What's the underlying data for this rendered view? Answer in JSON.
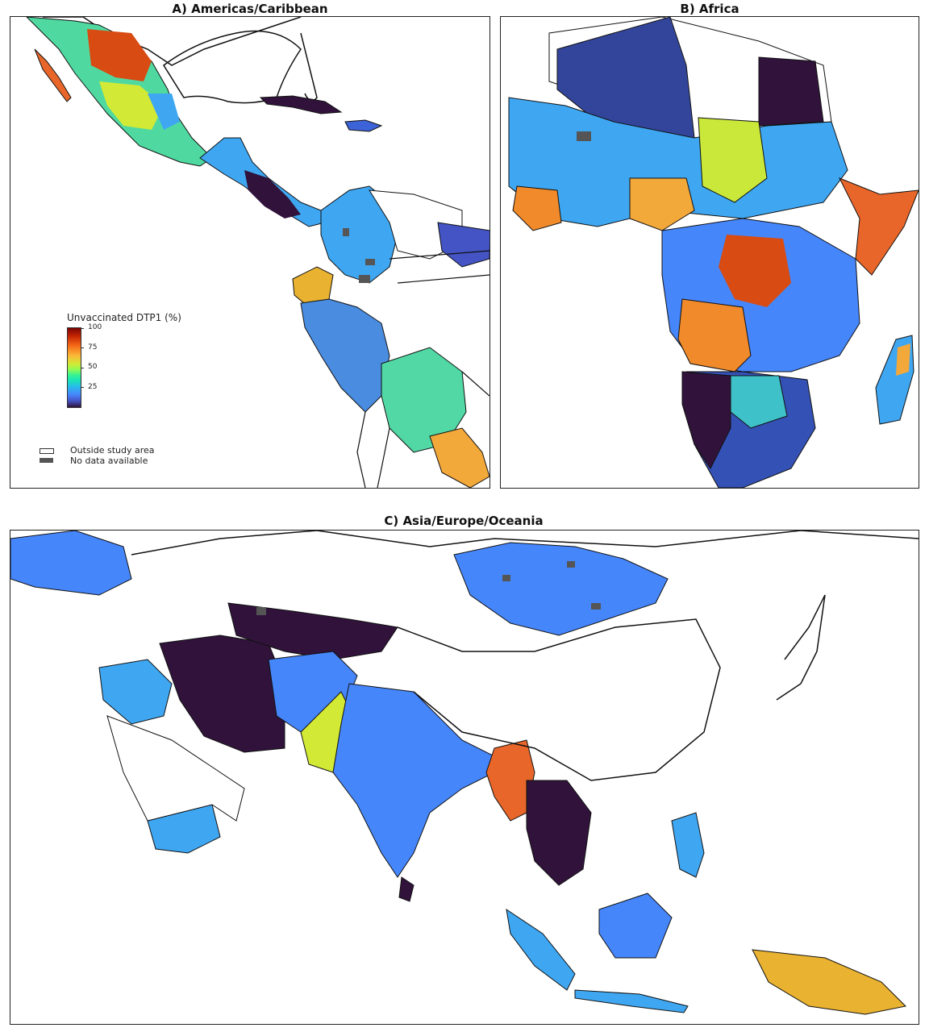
{
  "panels": {
    "americas": {
      "title": "A) Americas/Caribbean"
    },
    "africa": {
      "title": "B) Africa"
    },
    "asia": {
      "title": "C) Asia/Europe/Oceania"
    }
  },
  "legend": {
    "title": "Unvaccinated DTP1 (%)",
    "ticks": [
      "100",
      "75",
      "50",
      "25"
    ],
    "outside_label": "Outside study area",
    "nodata_label": "No data available"
  },
  "colors": {
    "outline": "#111111",
    "no_data": "#555555",
    "scale_low": "#30123b",
    "scale_25": "#4686fb",
    "scale_50": "#32f298",
    "scale_75": "#f56918",
    "scale_high": "#7a0403"
  }
}
